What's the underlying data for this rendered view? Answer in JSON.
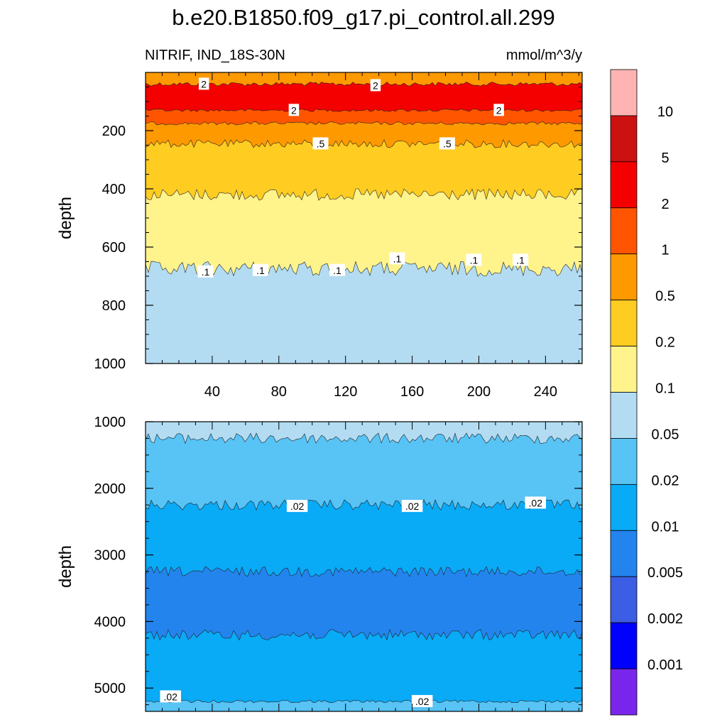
{
  "chart_data": {
    "type": "contour",
    "title": "b.e20.B1850.f09_g17.pi_control.all.299",
    "variable_label": "NITRIF, IND_18S-30N",
    "units_label": "mmol/m^3/y",
    "colorbar": {
      "levels": [
        "10",
        "5",
        "2",
        "1",
        "0.5",
        "0.2",
        "0.1",
        "0.05",
        "0.02",
        "0.01",
        "0.005",
        "0.002",
        "0.001"
      ],
      "colors": [
        "#ffb3b3",
        "#cc1111",
        "#f50000",
        "#ff5500",
        "#ff9900",
        "#ffcc22",
        "#fff38c",
        "#b3dcf2",
        "#58c3f5",
        "#09aaf6",
        "#2484ee",
        "#3b5ee4",
        "#0000ff",
        "#7a25eb"
      ]
    },
    "panels": [
      {
        "name": "upper",
        "ylabel": "depth",
        "ylim": [
          1000,
          0
        ],
        "xlim": [
          0,
          262
        ],
        "yticks": [
          200,
          400,
          600,
          800,
          1000
        ],
        "xticks": [
          40,
          80,
          120,
          160,
          200,
          240
        ],
        "bands": [
          {
            "top": 0,
            "bottom": 40,
            "value_range": "0.5-1",
            "color": "#ff9900"
          },
          {
            "top": 40,
            "bottom": 130,
            "value_range": "2-5",
            "color": "#f50000"
          },
          {
            "top": 130,
            "bottom": 175,
            "value_range": "1-2",
            "color": "#ff5500"
          },
          {
            "top": 175,
            "bottom": 245,
            "value_range": "0.5-1",
            "color": "#ff9900"
          },
          {
            "top": 245,
            "bottom": 420,
            "value_range": "0.2-0.5",
            "color": "#ffcc22"
          },
          {
            "top": 420,
            "bottom": 675,
            "value_range": "0.1-0.2",
            "color": "#fff38c"
          },
          {
            "top": 675,
            "bottom": 1000,
            "value_range": "0.05-0.1",
            "color": "#b3dcf2"
          }
        ],
        "contour_labels": [
          {
            "text": "2",
            "x": 35,
            "y": 40
          },
          {
            "text": "2",
            "x": 138,
            "y": 45
          },
          {
            "text": "2",
            "x": 89,
            "y": 130
          },
          {
            "text": "2",
            "x": 212,
            "y": 130
          },
          {
            "text": ".5",
            "x": 105,
            "y": 245
          },
          {
            "text": ".5",
            "x": 181,
            "y": 245
          },
          {
            "text": ".1",
            "x": 36,
            "y": 685
          },
          {
            "text": ".1",
            "x": 69,
            "y": 680
          },
          {
            "text": ".1",
            "x": 115,
            "y": 680
          },
          {
            "text": ".1",
            "x": 151,
            "y": 640
          },
          {
            "text": ".1",
            "x": 197,
            "y": 645
          },
          {
            "text": ".1",
            "x": 225,
            "y": 645
          }
        ]
      },
      {
        "name": "lower",
        "ylabel": "depth",
        "ylim": [
          5350,
          1000
        ],
        "xlim": [
          0,
          262
        ],
        "yticks": [
          1000,
          2000,
          3000,
          4000,
          5000
        ],
        "bands": [
          {
            "top": 1000,
            "bottom": 1250,
            "value_range": "0.05-0.1",
            "color": "#b3dcf2"
          },
          {
            "top": 1250,
            "bottom": 2250,
            "value_range": "0.02-0.05",
            "color": "#58c3f5"
          },
          {
            "top": 2250,
            "bottom": 3250,
            "value_range": "0.01-0.02",
            "color": "#09aaf6"
          },
          {
            "top": 3250,
            "bottom": 4200,
            "value_range": "0.005-0.01",
            "color": "#2484ee"
          },
          {
            "top": 4200,
            "bottom": 5200,
            "value_range": "0.01-0.02",
            "color": "#09aaf6"
          },
          {
            "top": 5200,
            "bottom": 5350,
            "value_range": "0.02-0.05",
            "color": "#58c3f5"
          }
        ],
        "contour_labels": [
          {
            "text": ".02",
            "x": 91,
            "y": 2270
          },
          {
            "text": ".02",
            "x": 160,
            "y": 2270
          },
          {
            "text": ".02",
            "x": 234,
            "y": 2220
          },
          {
            "text": ".02",
            "x": 15,
            "y": 5130
          },
          {
            "text": ".02",
            "x": 166,
            "y": 5200
          }
        ]
      }
    ]
  }
}
